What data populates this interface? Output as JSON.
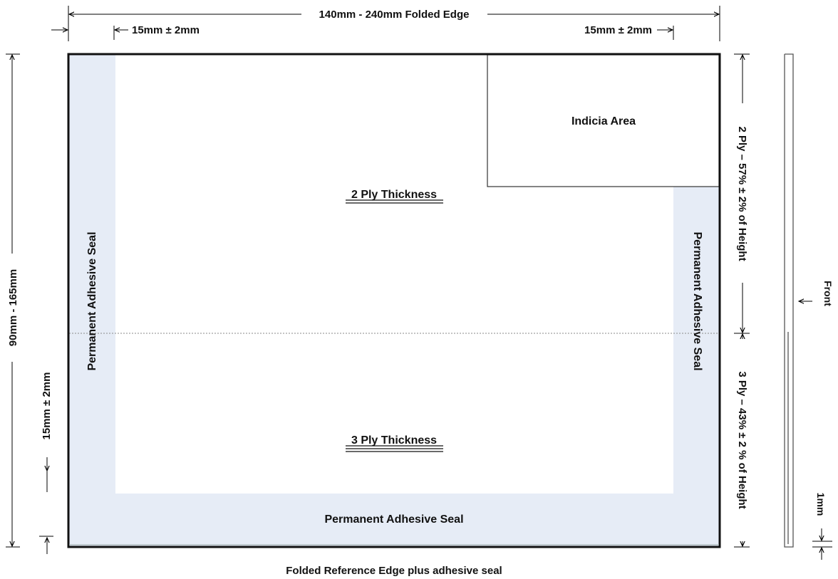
{
  "colors": {
    "seal_fill": "#e6ecf6",
    "line": "#111111",
    "dim_line": "#000000",
    "fold_dotted": "#8a8a8a"
  },
  "top_dimension": {
    "overall_width": "140mm - 240mm Folded Edge",
    "left_seal_width": "15mm ± 2mm",
    "right_seal_width": "15mm ± 2mm"
  },
  "left_dimension": {
    "overall_height": "90mm - 165mm",
    "bottom_seal_height": "15mm ± 2mm"
  },
  "right_dimension": {
    "two_ply": "2 Ply – 57% ± 2% of Height",
    "three_ply": "3 Ply – 43% ± 2 % of Height"
  },
  "panel": {
    "indicia_area": "Indicia Area",
    "two_ply_thickness": "2 Ply Thickness",
    "three_ply_thickness": "3 Ply Thickness",
    "left_seal": "Permanent Adhesive Seal",
    "right_seal": "Permanent Adhesive Seal",
    "bottom_seal": "Permanent Adhesive Seal"
  },
  "bottom_caption": "Folded Reference Edge plus adhesive seal",
  "side_view": {
    "front_label": "Front",
    "thickness_label": "1mm"
  }
}
